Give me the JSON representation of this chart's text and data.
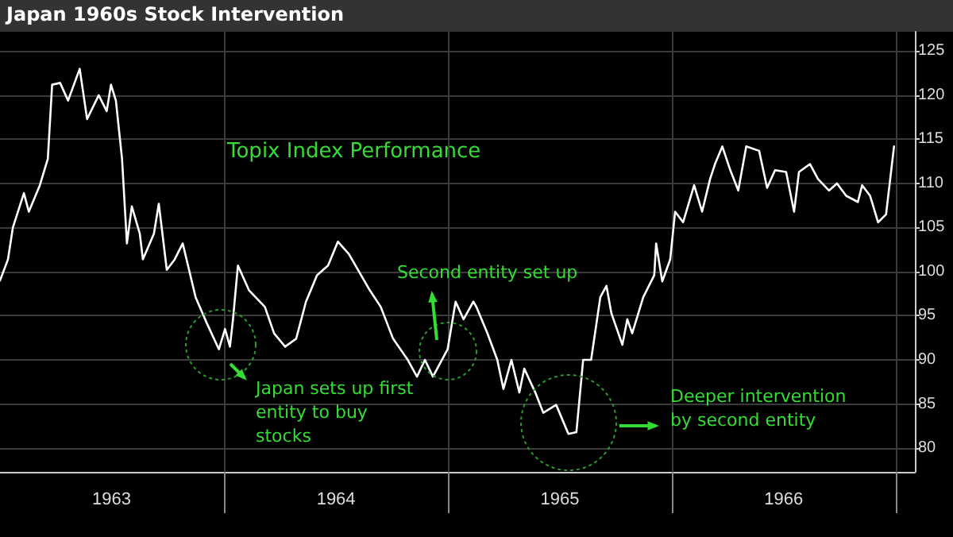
{
  "chart_data": {
    "type": "line",
    "title": "Japan 1960s Stock Intervention",
    "subtitle": "Topix Index Performance",
    "annotations": [
      "Japan sets up first entity to buy stocks",
      "Second entity set up",
      "Deeper intervention by second entity"
    ],
    "x": [
      "1963-01-01",
      "1963-01-14",
      "1963-01-22",
      "1963-02-09",
      "1963-02-17",
      "1963-03-07",
      "1963-03-20",
      "1963-03-27",
      "1963-04-09",
      "1963-04-22",
      "1963-05-11",
      "1963-05-23",
      "1963-06-11",
      "1963-06-24",
      "1963-07-01",
      "1963-07-09",
      "1963-07-19",
      "1963-07-27",
      "1963-08-04",
      "1963-08-17",
      "1963-08-22",
      "1963-09-09",
      "1963-09-17",
      "1963-09-30",
      "1963-10-13",
      "1963-10-26",
      "1963-11-16",
      "1963-12-04",
      "1963-12-24",
      "1964-01-03",
      "1964-01-11",
      "1964-01-16",
      "1964-01-24",
      "1964-02-11",
      "1964-03-08",
      "1964-03-23",
      "1964-04-10",
      "1964-04-28",
      "1964-05-14",
      "1964-06-01",
      "1964-06-19",
      "1964-07-05",
      "1964-07-23",
      "1964-08-26",
      "1964-09-13",
      "1964-10-03",
      "1964-10-27",
      "1964-11-11",
      "1964-11-24",
      "1964-12-07",
      "1964-12-31",
      "1965-01-13",
      "1965-01-26",
      "1965-02-11",
      "1965-02-16",
      "1965-03-06",
      "1965-03-22",
      "1965-04-01",
      "1965-04-14",
      "1965-04-27",
      "1965-05-05",
      "1965-05-23",
      "1965-06-05",
      "1965-06-26",
      "1965-07-16",
      "1965-07-29",
      "1965-08-09",
      "1965-08-22",
      "1965-09-06",
      "1965-09-16",
      "1965-09-24",
      "1965-10-12",
      "1965-10-20",
      "1965-10-28",
      "1965-11-15",
      "1965-12-03",
      "1965-12-06",
      "1965-12-16",
      "1965-12-29",
      "1966-01-06",
      "1966-01-19",
      "1966-02-06",
      "1966-02-19",
      "1966-03-04",
      "1966-03-12",
      "1966-03-24",
      "1966-04-06",
      "1966-04-19",
      "1966-05-02",
      "1966-05-23",
      "1966-06-05",
      "1966-06-18",
      "1966-07-06",
      "1966-07-19",
      "1966-07-27",
      "1966-08-14",
      "1966-08-27",
      "1966-09-14",
      "1966-09-27",
      "1966-10-12",
      "1966-10-31",
      "1966-11-07",
      "1966-11-20",
      "1966-12-03",
      "1966-12-16",
      "1966-12-29"
    ],
    "series": [
      {
        "color": "#ffffff",
        "values": [
          99.0,
          101.4,
          105.0,
          108.9,
          106.8,
          109.8,
          112.8,
          121.2,
          121.4,
          119.4,
          123.0,
          117.3,
          120.0,
          118.2,
          121.2,
          119.4,
          112.8,
          103.2,
          107.4,
          104.3,
          101.4,
          104.3,
          107.7,
          100.2,
          101.4,
          103.2,
          97.1,
          94.2,
          91.2,
          93.5,
          91.5,
          94.6,
          100.7,
          97.9,
          96.0,
          93.0,
          91.5,
          92.4,
          96.6,
          99.6,
          100.7,
          103.4,
          102.0,
          97.9,
          96.0,
          92.4,
          90.0,
          88.1,
          90.0,
          88.1,
          91.2,
          96.6,
          94.6,
          96.6,
          96.0,
          93.0,
          90.0,
          86.7,
          90.0,
          86.3,
          89.0,
          86.3,
          84.0,
          84.9,
          81.6,
          81.8,
          90.0,
          90.0,
          97.1,
          98.4,
          95.3,
          91.7,
          94.6,
          93.0,
          97.1,
          99.6,
          103.2,
          98.9,
          101.4,
          106.8,
          105.6,
          109.8,
          106.8,
          110.5,
          112.2,
          114.2,
          111.5,
          109.2,
          114.2,
          113.7,
          109.5,
          111.5,
          111.3,
          106.8,
          111.3,
          112.2,
          110.5,
          109.2,
          110.0,
          108.6,
          107.9,
          109.8,
          108.6,
          105.6,
          106.5,
          114.2
        ]
      }
    ],
    "xlim": [
      "1963-01-01",
      "1967-02-01"
    ],
    "xticks": [
      {
        "value": "1963-07-02",
        "label": "1963"
      },
      {
        "value": "1964-01-01",
        "label": null
      },
      {
        "value": "1964-07-02",
        "label": "1964"
      },
      {
        "value": "1965-01-01",
        "label": null
      },
      {
        "value": "1965-07-02",
        "label": "1965"
      },
      {
        "value": "1966-01-01",
        "label": null
      },
      {
        "value": "1966-07-02",
        "label": "1966"
      },
      {
        "value": "1967-01-01",
        "label": null
      }
    ],
    "ylim": [
      77.3,
      127.2
    ],
    "yticks": [
      80,
      85,
      90,
      95,
      100,
      105,
      110,
      115,
      120,
      125
    ],
    "grid": true,
    "marker": "none",
    "line_style": "solid"
  }
}
